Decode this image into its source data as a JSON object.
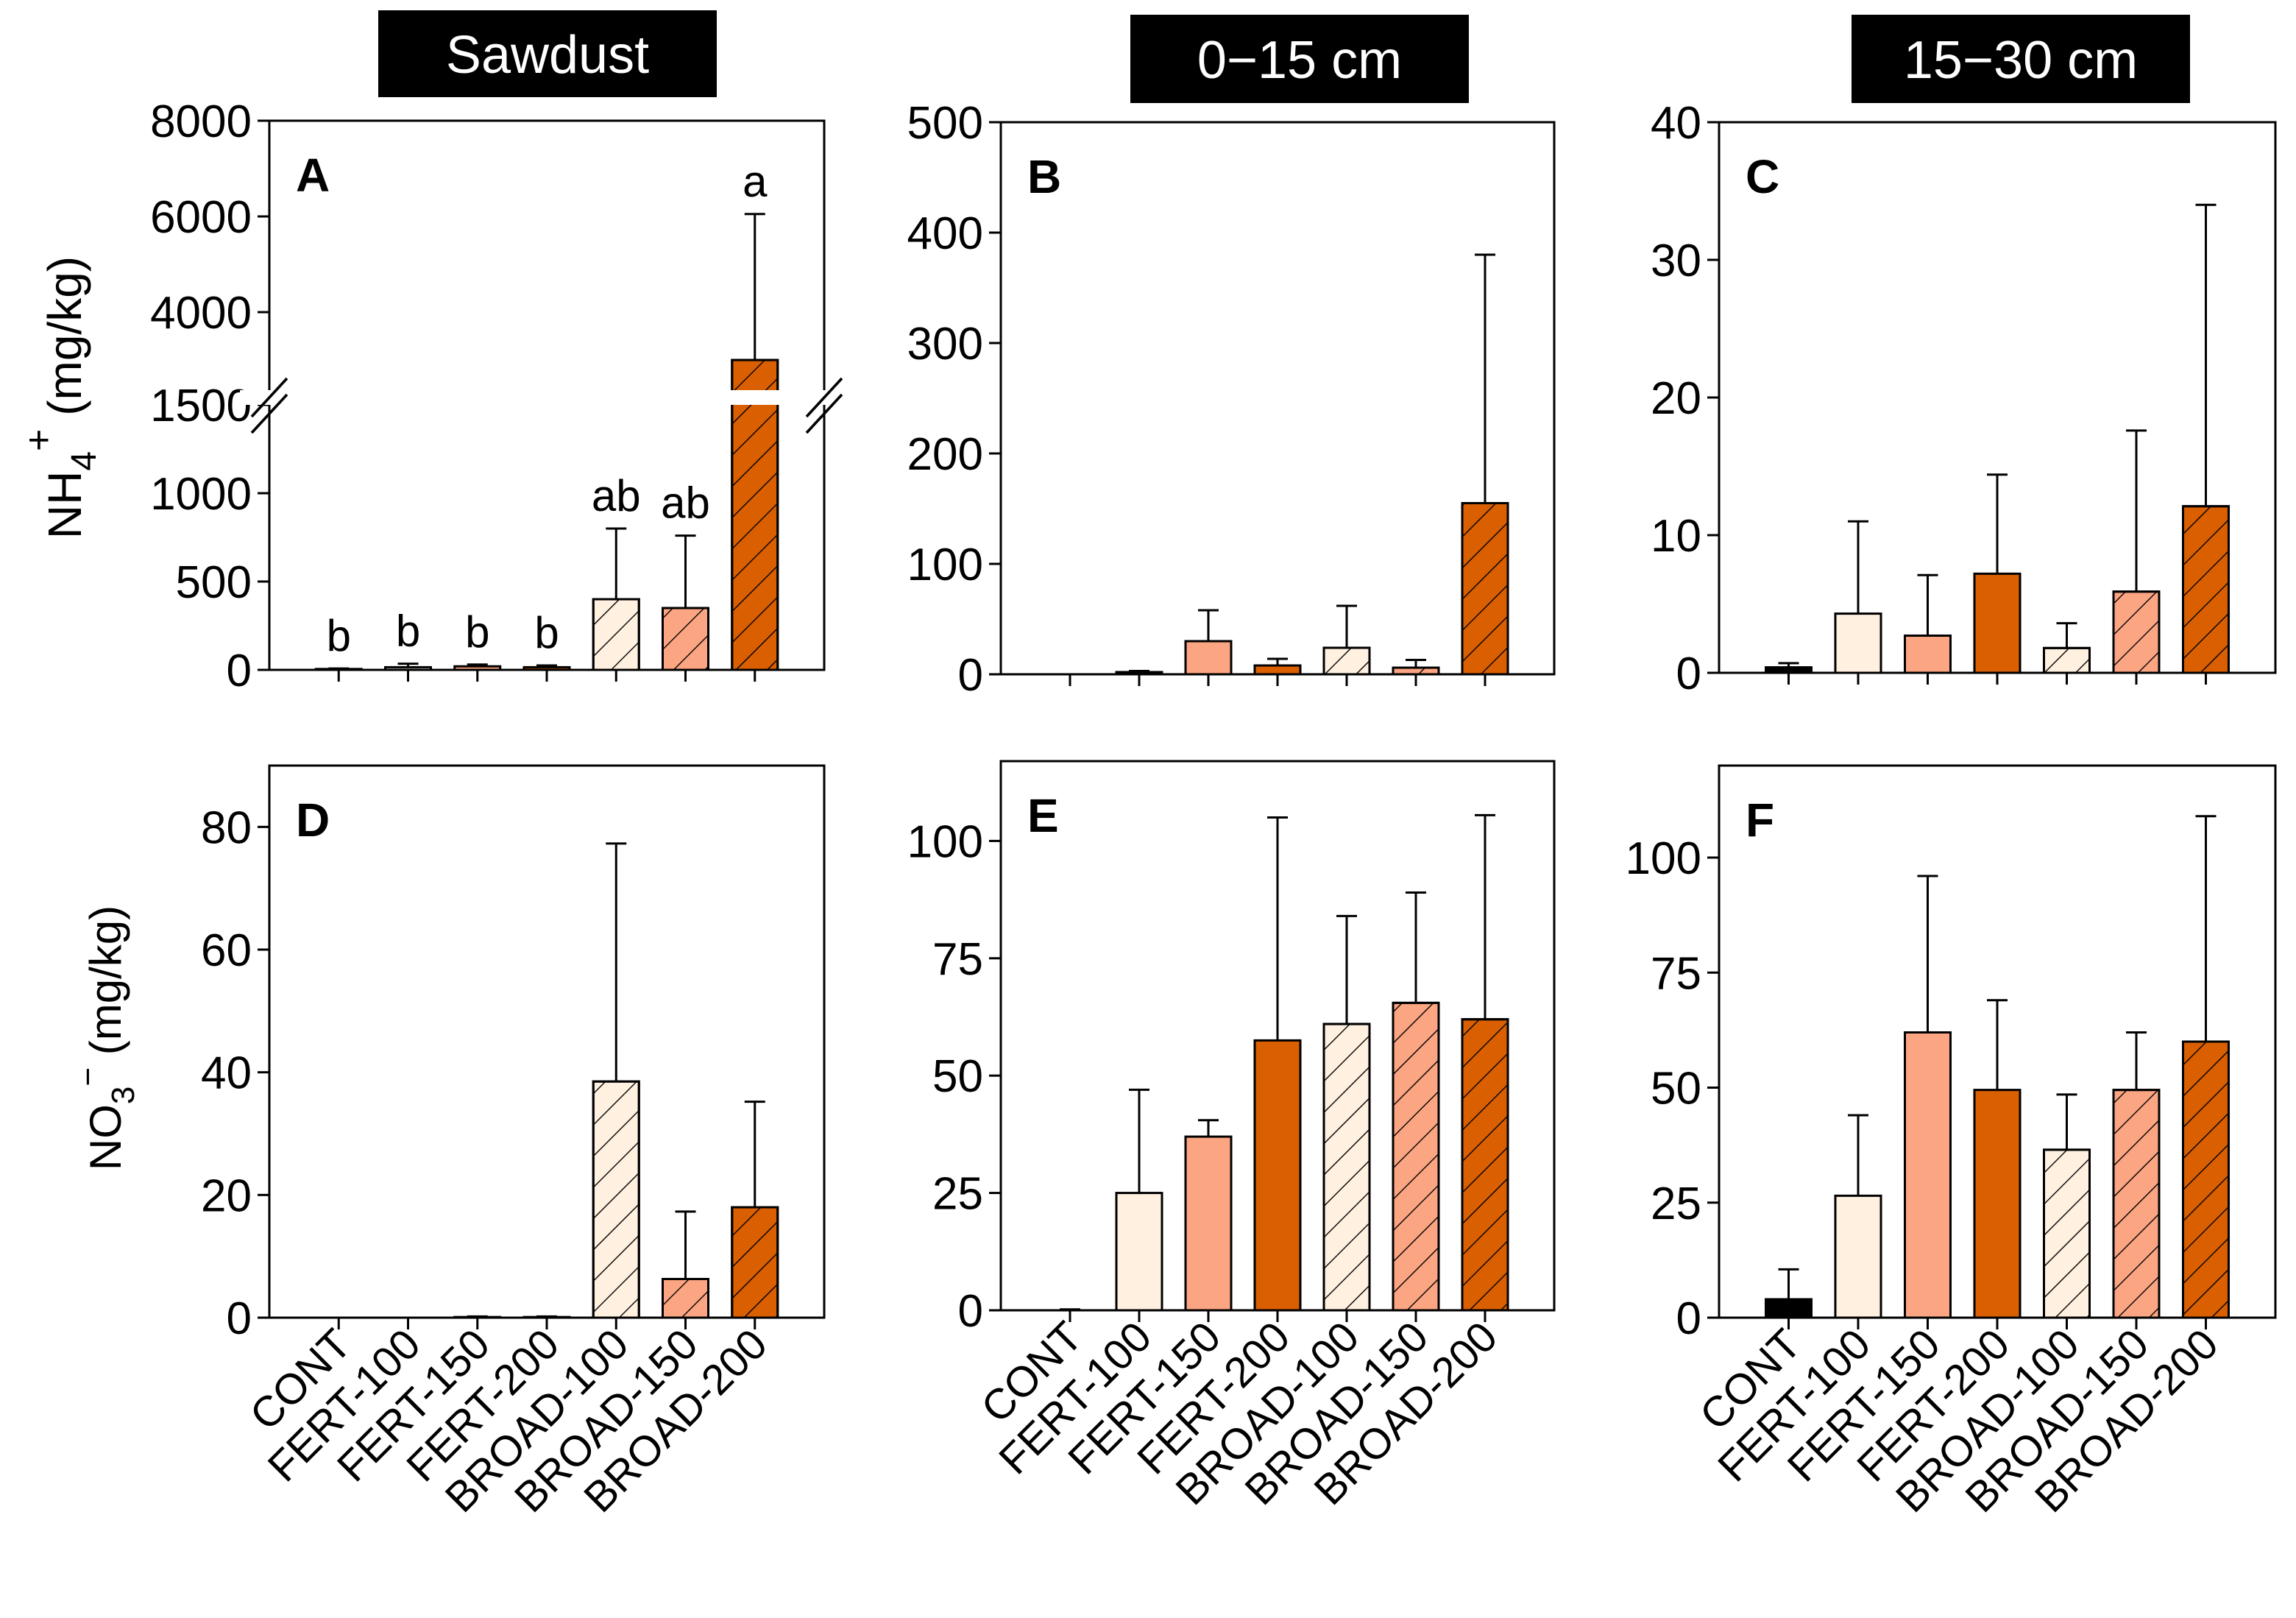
{
  "chart_data": {
    "type": "bar",
    "categories": [
      "CONT",
      "FERT-100",
      "FERT-150",
      "FERT-200",
      "BROAD-100",
      "BROAD-150",
      "BROAD-200"
    ],
    "colors": [
      "#000000",
      "#fff0e0",
      "#fca582",
      "#d95f00",
      "#fff0e0",
      "#fca582",
      "#d95f00"
    ],
    "hatched": [
      false,
      false,
      false,
      false,
      true,
      true,
      true
    ],
    "ylabels": {
      "nh4": {
        "base": "NH",
        "sub": "4",
        "sup": "+",
        "unit": " (mg/kg)"
      },
      "no3": {
        "base": "NO",
        "sub": "3",
        "sup": "−",
        "unit": " (mg/kg)"
      }
    },
    "panels": [
      {
        "id": "A",
        "letter": "A",
        "header": "Sawdust",
        "ylim": [
          0,
          8000
        ],
        "axis_break": [
          1500,
          2370
        ],
        "yticks": [
          0,
          500,
          1000,
          1500,
          4000,
          6000,
          8000
        ],
        "values": [
          5,
          15,
          20,
          15,
          400,
          350,
          3000
        ],
        "errors": [
          8,
          35,
          30,
          25,
          800,
          760,
          6050
        ],
        "letters": [
          "b",
          "b",
          "b",
          "b",
          "ab",
          "ab",
          "a"
        ]
      },
      {
        "id": "B",
        "letter": "B",
        "header": "0−15 cm",
        "ylim": [
          0,
          500
        ],
        "yticks": [
          0,
          100,
          200,
          300,
          400,
          500
        ],
        "values": [
          0,
          2,
          30,
          8,
          24,
          6,
          155
        ],
        "errors": [
          0,
          3,
          58,
          14,
          62,
          13,
          380
        ]
      },
      {
        "id": "C",
        "letter": "C",
        "header": "15−30 cm",
        "ylim": [
          0,
          40
        ],
        "yticks": [
          0,
          10,
          20,
          30,
          40
        ],
        "values": [
          0.4,
          4.3,
          2.7,
          7.2,
          1.8,
          5.9,
          12.1
        ],
        "errors": [
          0.7,
          11,
          7.1,
          14.4,
          3.6,
          17.6,
          34
        ]
      },
      {
        "id": "D",
        "letter": "D",
        "ylim": [
          0,
          90
        ],
        "yticks": [
          0,
          20,
          40,
          60,
          80
        ],
        "values": [
          0,
          0,
          0.1,
          0.1,
          38.5,
          6.3,
          18
        ],
        "errors": [
          0,
          0,
          0.2,
          0.2,
          77.3,
          17.3,
          35.2
        ]
      },
      {
        "id": "E",
        "letter": "E",
        "ylim": [
          0,
          117
        ],
        "yticks": [
          0,
          25,
          50,
          75,
          100
        ],
        "values": [
          0,
          25,
          37,
          57.5,
          61,
          65.5,
          62
        ],
        "errors": [
          0.2,
          47,
          40.5,
          105,
          84,
          89,
          105.5
        ]
      },
      {
        "id": "F",
        "letter": "F",
        "ylim": [
          0,
          120
        ],
        "yticks": [
          0,
          25,
          50,
          75,
          100
        ],
        "values": [
          4,
          26.5,
          62,
          49.5,
          36.5,
          49.5,
          60
        ],
        "errors": [
          10.5,
          44,
          96,
          69,
          48.5,
          62,
          109
        ]
      }
    ]
  }
}
